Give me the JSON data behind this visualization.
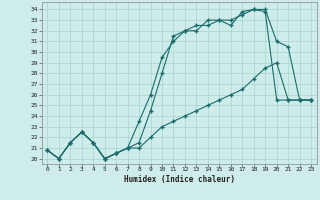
{
  "xlabel": "Humidex (Indice chaleur)",
  "bg_color": "#ceecea",
  "grid_color": "#add8d5",
  "line_color": "#1a6b6b",
  "x_values": [
    0,
    1,
    2,
    3,
    4,
    5,
    6,
    7,
    8,
    9,
    10,
    11,
    12,
    13,
    14,
    15,
    16,
    17,
    18,
    19,
    20,
    21,
    22,
    23
  ],
  "line1_y": [
    20.8,
    20.0,
    21.5,
    22.5,
    21.5,
    20.0,
    20.5,
    21.0,
    21.5,
    24.5,
    28.0,
    31.5,
    32.0,
    32.5,
    32.5,
    33.0,
    33.0,
    33.5,
    34.0,
    33.8,
    25.5,
    25.5,
    25.5,
    25.5
  ],
  "line2_y": [
    20.8,
    20.0,
    21.5,
    22.5,
    21.5,
    20.0,
    20.5,
    21.0,
    23.5,
    26.0,
    29.5,
    31.0,
    32.0,
    32.0,
    33.0,
    33.0,
    32.5,
    33.8,
    34.0,
    34.0,
    31.0,
    30.5,
    25.5,
    25.5
  ],
  "line3_y": [
    20.8,
    20.0,
    21.5,
    22.5,
    21.5,
    20.0,
    20.5,
    21.0,
    21.0,
    22.0,
    23.0,
    23.5,
    24.0,
    24.5,
    25.0,
    25.5,
    26.0,
    26.5,
    27.5,
    28.5,
    29.0,
    25.5,
    25.5,
    25.5
  ],
  "ylim": [
    19.5,
    34.7
  ],
  "yticks": [
    20,
    21,
    22,
    23,
    24,
    25,
    26,
    27,
    28,
    29,
    30,
    31,
    32,
    33,
    34
  ],
  "xticks": [
    0,
    1,
    2,
    3,
    4,
    5,
    6,
    7,
    8,
    9,
    10,
    11,
    12,
    13,
    14,
    15,
    16,
    17,
    18,
    19,
    20,
    21,
    22,
    23
  ],
  "marker": "+",
  "markersize": 3,
  "linewidth": 0.8
}
